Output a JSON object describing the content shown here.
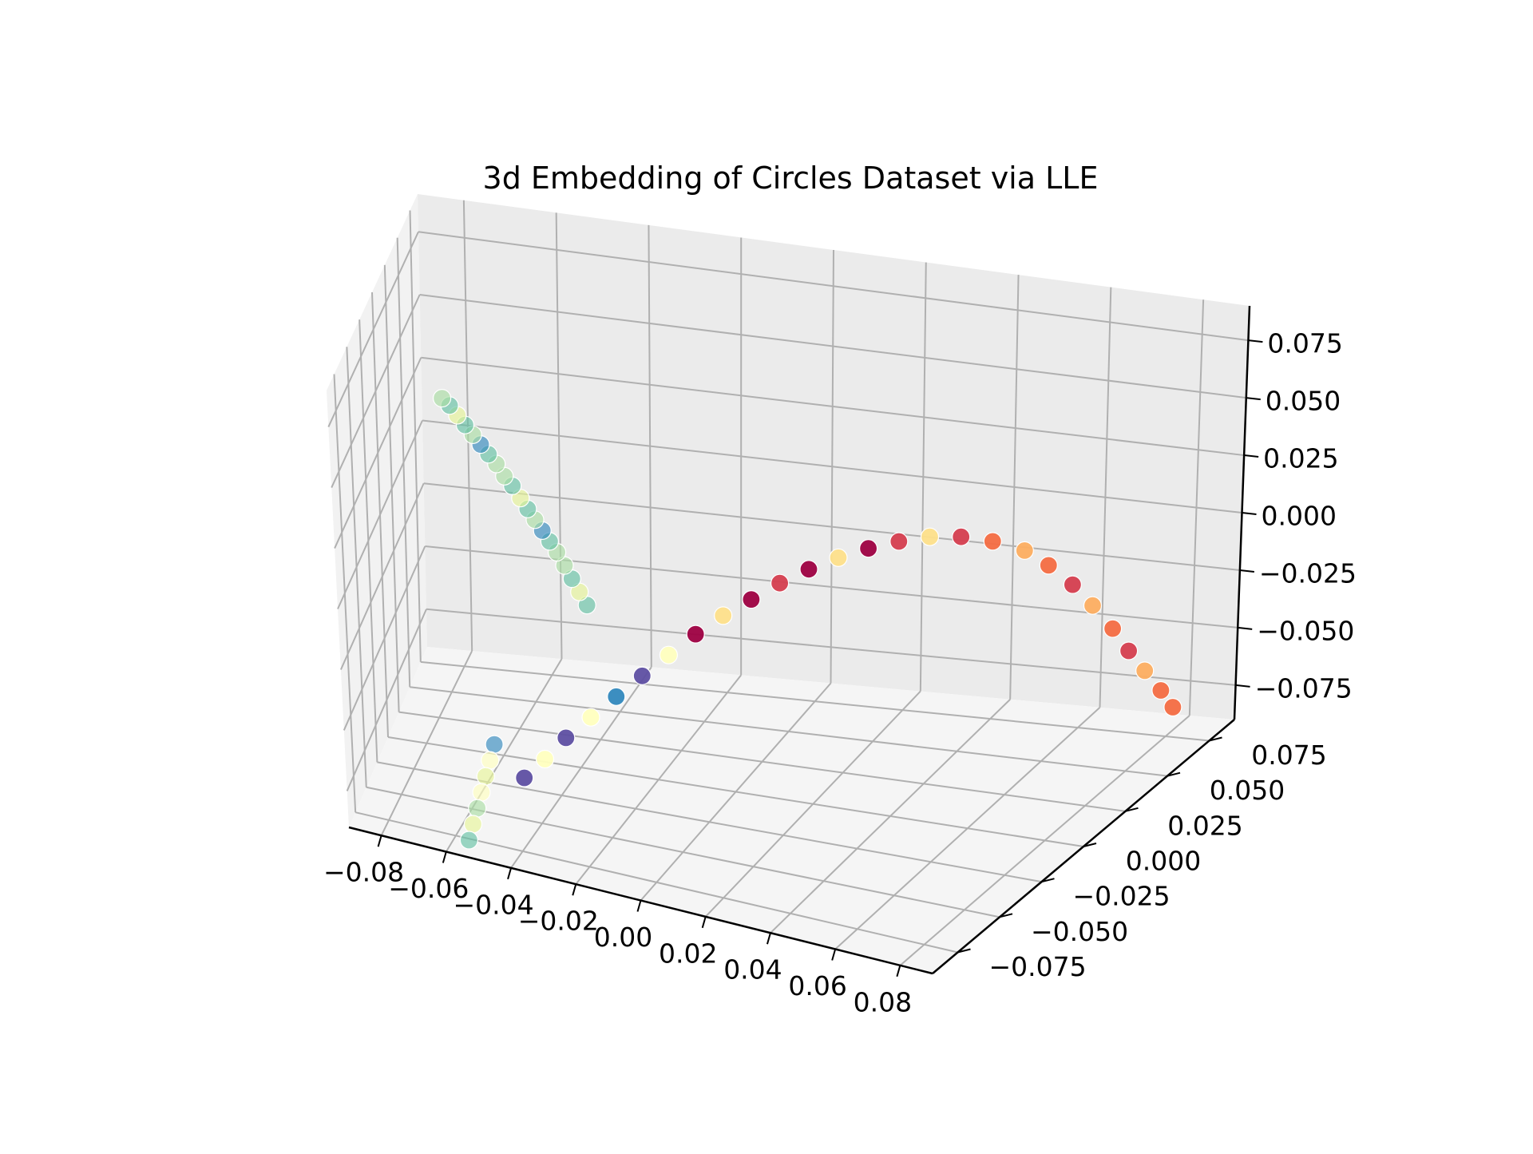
{
  "chart_data": {
    "type": "scatter",
    "projection": "3d",
    "title": "3d Embedding of Circles Dataset via LLE",
    "xlabel": "",
    "ylabel": "",
    "zlabel": "",
    "grid": true,
    "colormap": "Spectral",
    "xlim": [
      -0.09,
      0.09
    ],
    "ylim": [
      -0.09,
      0.09
    ],
    "zlim": [
      -0.09,
      0.09
    ],
    "x_ticks": [
      "−0.08",
      "−0.06",
      "−0.04",
      "−0.02",
      "0.00",
      "0.02",
      "0.04",
      "0.06",
      "0.08"
    ],
    "y_ticks": [
      "−0.075",
      "−0.050",
      "−0.025",
      "0.000",
      "0.025",
      "0.050",
      "0.075"
    ],
    "z_ticks": [
      "−0.075",
      "−0.050",
      "−0.025",
      "0.000",
      "0.025",
      "0.050",
      "0.075"
    ],
    "x_tick_values": [
      -0.08,
      -0.06,
      -0.04,
      -0.02,
      0.0,
      0.02,
      0.04,
      0.06,
      0.08
    ],
    "y_tick_values": [
      -0.075,
      -0.05,
      -0.025,
      0.0,
      0.025,
      0.05,
      0.075
    ],
    "z_tick_values": [
      -0.075,
      -0.05,
      -0.025,
      0.0,
      0.025,
      0.05,
      0.075
    ],
    "series": [
      {
        "color_group": "outer circle (green–blue end)",
        "points": [
          [
            -0.06,
            -0.07,
            0.088
          ],
          [
            -0.059,
            -0.065,
            0.083
          ],
          [
            -0.058,
            -0.06,
            0.077
          ],
          [
            -0.057,
            -0.055,
            0.071
          ],
          [
            -0.056,
            -0.05,
            0.065
          ],
          [
            -0.055,
            -0.045,
            0.059
          ],
          [
            -0.054,
            -0.04,
            0.053
          ],
          [
            -0.053,
            -0.035,
            0.047
          ],
          [
            -0.052,
            -0.03,
            0.04
          ],
          [
            -0.051,
            -0.025,
            0.034
          ],
          [
            -0.05,
            -0.02,
            0.027
          ],
          [
            -0.049,
            -0.016,
            0.021
          ],
          [
            -0.048,
            -0.012,
            0.015
          ],
          [
            -0.047,
            -0.008,
            0.009
          ],
          [
            -0.046,
            -0.004,
            0.003
          ],
          [
            -0.045,
            0.0,
            -0.003
          ],
          [
            -0.044,
            0.004,
            -0.01
          ],
          [
            -0.043,
            0.008,
            -0.017
          ],
          [
            -0.042,
            0.012,
            -0.024
          ],
          [
            -0.041,
            0.016,
            -0.031
          ]
        ]
      },
      {
        "color_group": "inner circle arc",
        "points": [
          [
            -0.04,
            -0.07,
            -0.062
          ],
          [
            -0.035,
            -0.065,
            -0.055
          ],
          [
            -0.03,
            -0.06,
            -0.047
          ],
          [
            -0.024,
            -0.055,
            -0.039
          ],
          [
            -0.018,
            -0.05,
            -0.031
          ],
          [
            -0.012,
            -0.045,
            -0.023
          ],
          [
            -0.006,
            -0.04,
            -0.015
          ],
          [
            0.0,
            -0.035,
            -0.007
          ],
          [
            0.006,
            -0.03,
            0.0
          ],
          [
            0.012,
            -0.025,
            0.006
          ],
          [
            0.018,
            -0.02,
            0.012
          ],
          [
            0.024,
            -0.015,
            0.017
          ],
          [
            0.03,
            -0.01,
            0.021
          ],
          [
            0.036,
            -0.005,
            0.024
          ],
          [
            0.042,
            0.0,
            0.026
          ],
          [
            0.048,
            0.005,
            0.027
          ],
          [
            0.054,
            0.01,
            0.026
          ],
          [
            0.06,
            0.015,
            0.023
          ],
          [
            0.066,
            0.02,
            0.018
          ],
          [
            0.07,
            0.025,
            0.01
          ],
          [
            0.074,
            0.03,
            0.0
          ],
          [
            0.077,
            0.035,
            -0.011
          ],
          [
            0.08,
            0.04,
            -0.023
          ],
          [
            0.082,
            0.045,
            -0.035
          ],
          [
            0.084,
            0.05,
            -0.046
          ],
          [
            0.086,
            0.055,
            -0.057
          ],
          [
            0.087,
            0.06,
            -0.067
          ]
        ]
      },
      {
        "color_group": "outer circle (lower cluster)",
        "points": [
          [
            -0.055,
            -0.08,
            -0.088
          ],
          [
            -0.054,
            -0.078,
            -0.082
          ],
          [
            -0.053,
            -0.076,
            -0.076
          ],
          [
            -0.052,
            -0.074,
            -0.07
          ],
          [
            -0.051,
            -0.072,
            -0.064
          ],
          [
            -0.05,
            -0.07,
            -0.058
          ],
          [
            -0.049,
            -0.068,
            -0.052
          ]
        ]
      }
    ]
  }
}
